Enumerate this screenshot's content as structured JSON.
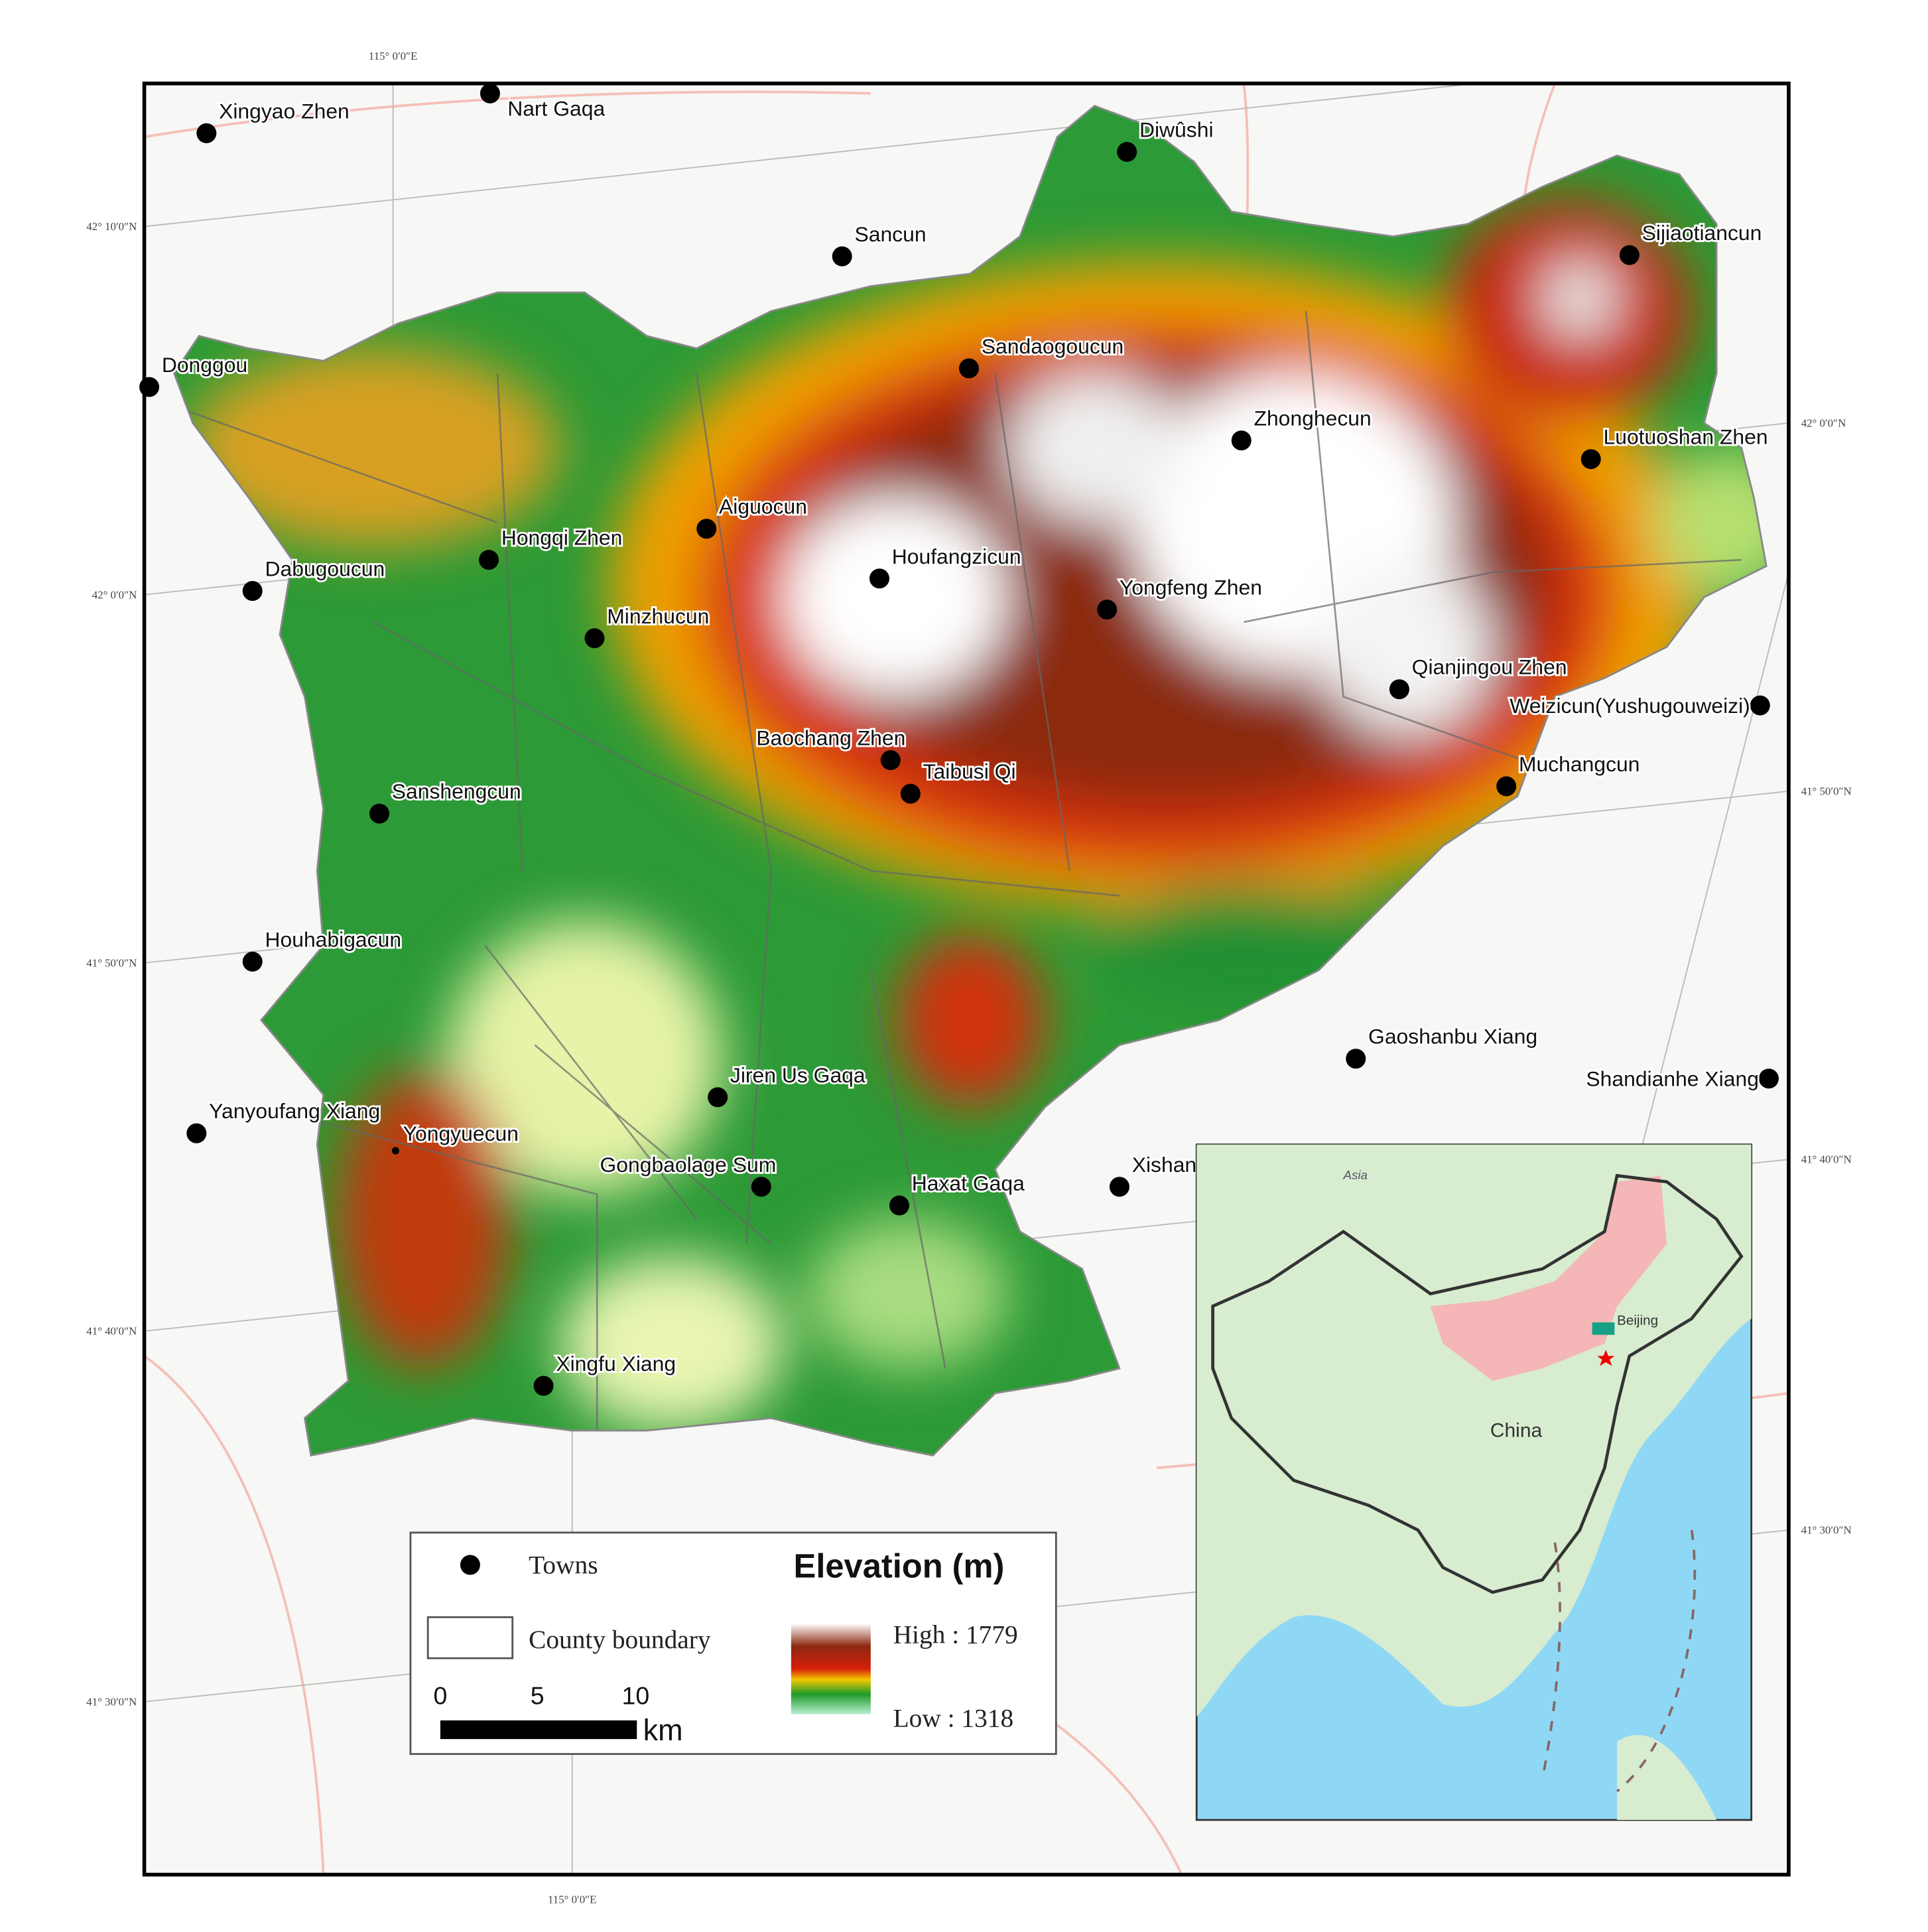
{
  "graticule": {
    "top": "115° 0′0″E",
    "bottom": "115° 0′0″E",
    "left": [
      "42° 10′0″N",
      "42° 0′0″N",
      "41° 50′0″N",
      "41° 40′0″N",
      "41° 30′0″N"
    ],
    "right": [
      "42° 0′0″N",
      "41° 50′0″N",
      "41° 40′0″N",
      "41° 30′0″N"
    ]
  },
  "towns": [
    {
      "name": "Xingyao Zhen"
    },
    {
      "name": "Nart Gaqa"
    },
    {
      "name": "Diwûshi"
    },
    {
      "name": "Sancun"
    },
    {
      "name": "Sijiaotiancun"
    },
    {
      "name": "Donggou"
    },
    {
      "name": "Sandaogoucun"
    },
    {
      "name": "Zhonghecun"
    },
    {
      "name": "Luotuoshan Zhen"
    },
    {
      "name": "Aiguocun"
    },
    {
      "name": "Hongqi Zhen"
    },
    {
      "name": "Dabugoucun"
    },
    {
      "name": "Houfangzicun"
    },
    {
      "name": "Yongfeng Zhen"
    },
    {
      "name": "Minzhucun"
    },
    {
      "name": "Qianjingou Zhen"
    },
    {
      "name": "Weizicun(Yushugouweizi)"
    },
    {
      "name": "Baochang Zhen"
    },
    {
      "name": "Taibusi Qi"
    },
    {
      "name": "Muchangcun"
    },
    {
      "name": "Sanshengcun"
    },
    {
      "name": "Houhabigacun"
    },
    {
      "name": "Gaoshanbu Xiang"
    },
    {
      "name": "Shandianhe Xiang"
    },
    {
      "name": "Jiren Us Gaqa"
    },
    {
      "name": "Yanyoufang Xiang"
    },
    {
      "name": "Yongyuecun"
    },
    {
      "name": "Gongbaolage Sum"
    },
    {
      "name": "Haxat Gaqa"
    },
    {
      "name": "Xishan"
    },
    {
      "name": "Xingfu Xiang"
    }
  ],
  "legend": {
    "towns": "Towns",
    "county_boundary": "County boundary",
    "elevation_title": "Elevation (m)",
    "high": "High : 1779",
    "low": "Low : 1318",
    "scale": {
      "ticks": [
        "0",
        "5",
        "10"
      ],
      "unit": "km"
    }
  },
  "inset": {
    "asia": "Asia",
    "china": "China",
    "beijing": "Beijing"
  }
}
